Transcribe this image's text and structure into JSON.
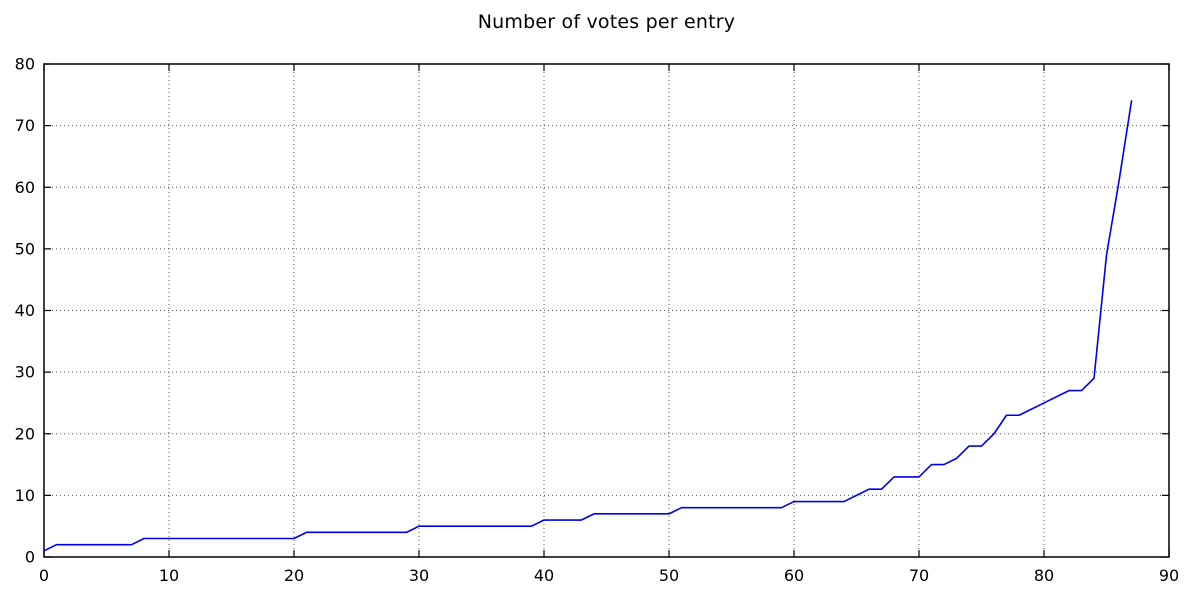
{
  "figure": {
    "background": "#ffffff"
  },
  "chart_data": {
    "type": "line",
    "title": "Number of votes per entry",
    "xlabel": "",
    "ylabel": "",
    "x": [
      0,
      1,
      2,
      3,
      4,
      5,
      6,
      7,
      8,
      9,
      10,
      11,
      12,
      13,
      14,
      15,
      16,
      17,
      18,
      19,
      20,
      21,
      22,
      23,
      24,
      25,
      26,
      27,
      28,
      29,
      30,
      31,
      32,
      33,
      34,
      35,
      36,
      37,
      38,
      39,
      40,
      41,
      42,
      43,
      44,
      45,
      46,
      47,
      48,
      49,
      50,
      51,
      52,
      53,
      54,
      55,
      56,
      57,
      58,
      59,
      60,
      61,
      62,
      63,
      64,
      65,
      66,
      67,
      68,
      69,
      70,
      71,
      72,
      73,
      74,
      75,
      76,
      77,
      78,
      79,
      80,
      81,
      82,
      83,
      84,
      85,
      86,
      87
    ],
    "values": [
      1,
      2,
      2,
      2,
      2,
      2,
      2,
      2,
      3,
      3,
      3,
      3,
      3,
      3,
      3,
      3,
      3,
      3,
      3,
      3,
      3,
      4,
      4,
      4,
      4,
      4,
      4,
      4,
      4,
      4,
      5,
      5,
      5,
      5,
      5,
      5,
      5,
      5,
      5,
      5,
      6,
      6,
      6,
      6,
      7,
      7,
      7,
      7,
      7,
      7,
      7,
      8,
      8,
      8,
      8,
      8,
      8,
      8,
      8,
      8,
      9,
      9,
      9,
      9,
      9,
      10,
      11,
      11,
      13,
      13,
      13,
      15,
      15,
      16,
      18,
      18,
      20,
      23,
      23,
      24,
      25,
      26,
      27,
      27,
      29,
      49,
      61,
      74
    ],
    "xlim": [
      0,
      90
    ],
    "ylim": [
      0,
      80
    ],
    "xticks": [
      0,
      10,
      20,
      30,
      40,
      50,
      60,
      70,
      80,
      90
    ],
    "yticks": [
      0,
      10,
      20,
      30,
      40,
      50,
      60,
      70,
      80
    ],
    "grid": true,
    "grid_style": "dotted",
    "grid_color": "#555555",
    "line_color": "#0000ee",
    "frame_color": "#000000",
    "legend": null
  }
}
